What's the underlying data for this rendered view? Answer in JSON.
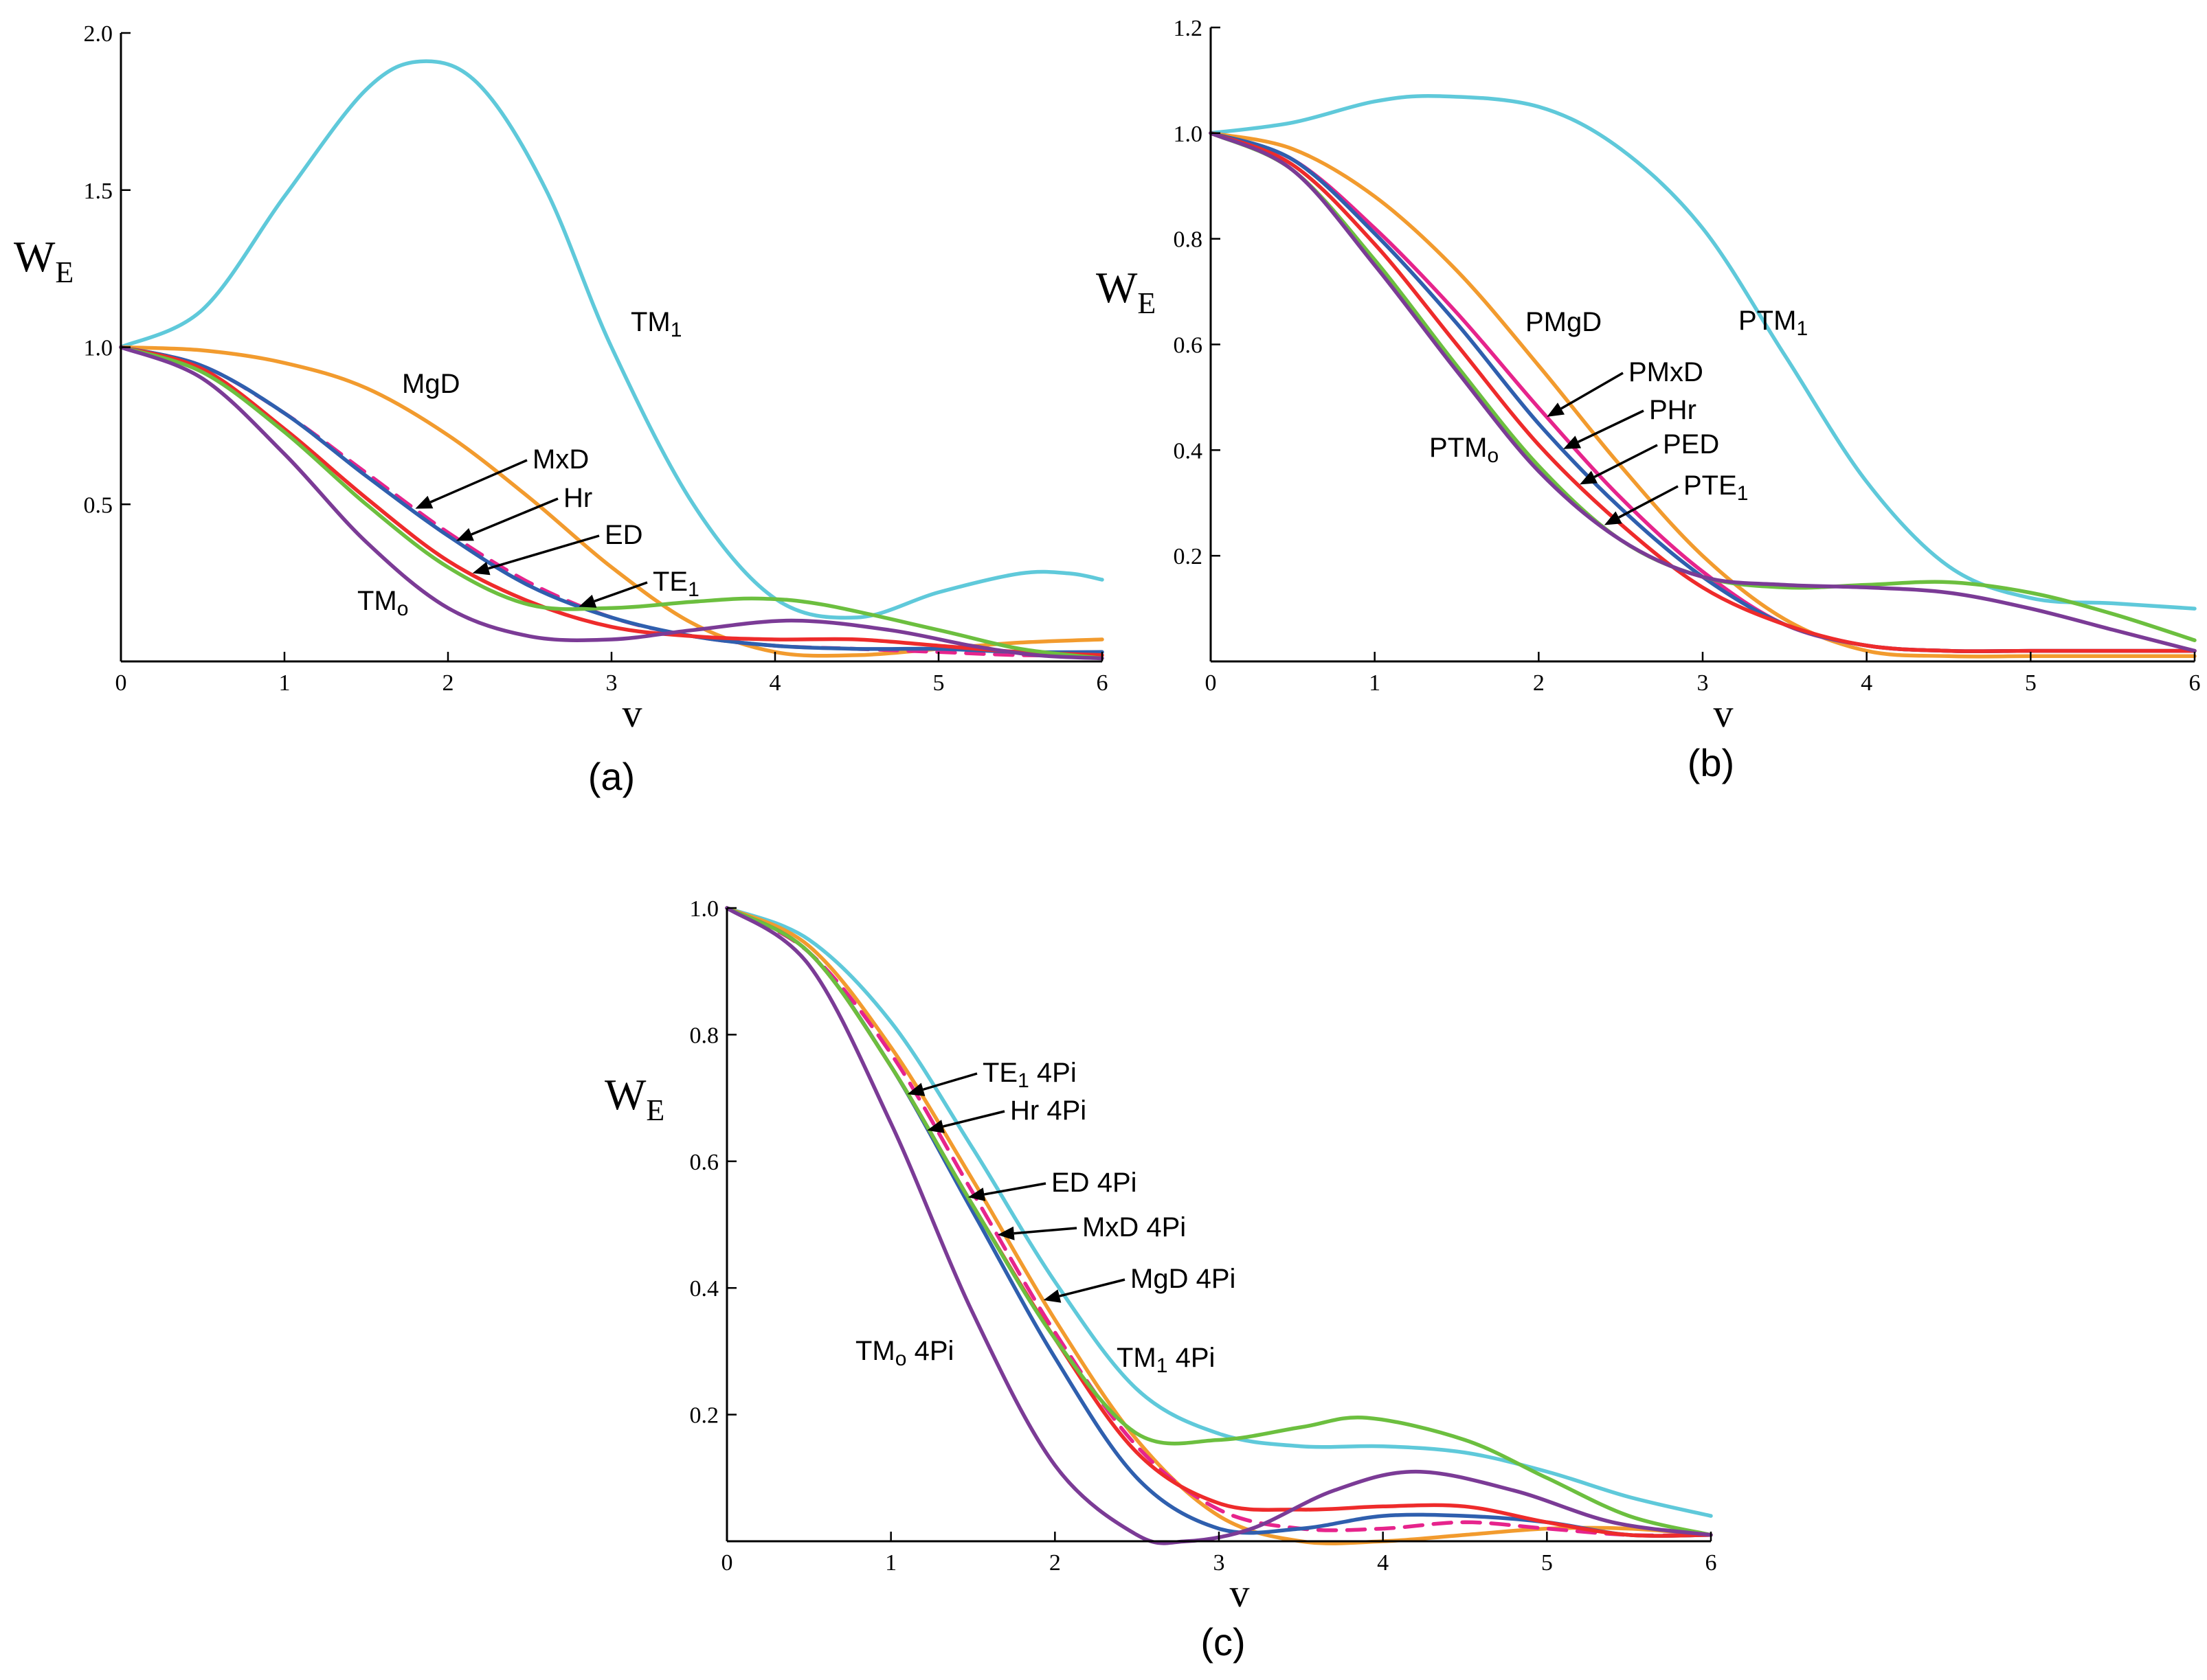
{
  "chart_data": [
    {
      "id": "a",
      "type": "line",
      "panel_label": "(a)",
      "xlabel": "v",
      "ylabel": "W",
      "ylabel_sub": "E",
      "xlim": [
        0,
        6
      ],
      "ylim": [
        0,
        2.0
      ],
      "xticks": [
        "0",
        "1",
        "2",
        "3",
        "4",
        "5",
        "6"
      ],
      "yticks": [
        "0.5",
        "1.0",
        "1.5",
        "2.0"
      ],
      "ytick_values": [
        0.5,
        1.0,
        1.5,
        2.0
      ],
      "series": [
        {
          "name": "TM1",
          "label_main": "TM",
          "label_sub": "1",
          "label_rest": "",
          "color": "#5fc9da",
          "dashed": false,
          "x": [
            0,
            0.5,
            1,
            1.5,
            1.85,
            2.2,
            2.6,
            3,
            3.5,
            4.0,
            4.5,
            5,
            5.5,
            5.8,
            6
          ],
          "y": [
            1.0,
            1.12,
            1.48,
            1.82,
            1.91,
            1.83,
            1.5,
            1.0,
            0.5,
            0.2,
            0.14,
            0.22,
            0.28,
            0.28,
            0.26
          ]
        },
        {
          "name": "MgD",
          "label_main": "MgD",
          "label_sub": "",
          "label_rest": "",
          "color": "#f29b2e",
          "dashed": false,
          "x": [
            0,
            0.5,
            1,
            1.5,
            2,
            2.5,
            3,
            3.5,
            4,
            4.5,
            5,
            5.5,
            6
          ],
          "y": [
            1.0,
            0.99,
            0.95,
            0.87,
            0.72,
            0.52,
            0.3,
            0.12,
            0.03,
            0.02,
            0.04,
            0.06,
            0.07
          ]
        },
        {
          "name": "MxD",
          "label_main": "MxD",
          "label_sub": "",
          "label_rest": "",
          "color": "#e6248c",
          "dashed": true,
          "x": [
            0,
            0.5,
            1,
            1.5,
            2,
            2.5,
            3,
            3.5,
            4,
            4.5,
            5,
            5.5,
            6
          ],
          "y": [
            1.0,
            0.94,
            0.79,
            0.6,
            0.41,
            0.25,
            0.14,
            0.08,
            0.05,
            0.04,
            0.03,
            0.02,
            0.02
          ]
        },
        {
          "name": "Hr",
          "label_main": "Hr",
          "label_sub": "",
          "label_rest": "",
          "color": "#2f5fae",
          "dashed": false,
          "x": [
            0,
            0.5,
            1,
            1.5,
            2,
            2.5,
            3,
            3.5,
            4,
            4.5,
            5,
            5.5,
            6
          ],
          "y": [
            1.0,
            0.94,
            0.79,
            0.59,
            0.4,
            0.24,
            0.14,
            0.08,
            0.05,
            0.04,
            0.04,
            0.03,
            0.03
          ]
        },
        {
          "name": "ED",
          "label_main": "ED",
          "label_sub": "",
          "label_rest": "",
          "color": "#ee2b2b",
          "dashed": false,
          "x": [
            0,
            0.5,
            1,
            1.5,
            2,
            2.5,
            3,
            3.5,
            4,
            4.5,
            5,
            5.5,
            6
          ],
          "y": [
            1.0,
            0.93,
            0.74,
            0.52,
            0.32,
            0.19,
            0.11,
            0.08,
            0.07,
            0.07,
            0.05,
            0.03,
            0.02
          ]
        },
        {
          "name": "TE1",
          "label_main": "TE",
          "label_sub": "1",
          "label_rest": "",
          "color": "#6cbf3f",
          "dashed": false,
          "x": [
            0,
            0.5,
            1,
            1.5,
            2,
            2.5,
            3,
            3.5,
            3.9,
            4.3,
            5,
            5.5,
            6
          ],
          "y": [
            1.0,
            0.92,
            0.73,
            0.5,
            0.3,
            0.18,
            0.17,
            0.19,
            0.2,
            0.18,
            0.1,
            0.04,
            0.01
          ]
        },
        {
          "name": "TM0",
          "label_main": "TM",
          "label_sub": "o",
          "label_rest": "",
          "color": "#7b3b96",
          "dashed": false,
          "x": [
            0,
            0.5,
            1,
            1.5,
            2,
            2.5,
            3,
            3.5,
            4.1,
            4.7,
            5.2,
            5.6,
            6
          ],
          "y": [
            1.0,
            0.9,
            0.66,
            0.38,
            0.17,
            0.08,
            0.07,
            0.1,
            0.13,
            0.1,
            0.05,
            0.02,
            0.01
          ]
        }
      ],
      "annotations": [
        {
          "series": "TM1",
          "arrow": false
        },
        {
          "series": "MgD",
          "arrow": false
        },
        {
          "series": "MxD",
          "arrow": true,
          "ax": 1.8
        },
        {
          "series": "Hr",
          "arrow": true,
          "ax": 2.05
        },
        {
          "series": "ED",
          "arrow": true,
          "ax": 2.15
        },
        {
          "series": "TE1",
          "arrow": true,
          "ax": 2.8
        },
        {
          "series": "TM0",
          "arrow": false
        }
      ]
    },
    {
      "id": "b",
      "type": "line",
      "panel_label": "(b)",
      "xlabel": "v",
      "ylabel": "W",
      "ylabel_sub": "E",
      "xlim": [
        0,
        6
      ],
      "ylim": [
        0,
        1.2
      ],
      "xticks": [
        "0",
        "1",
        "2",
        "3",
        "4",
        "5",
        "6"
      ],
      "yticks": [
        "0.2",
        "0.4",
        "0.6",
        "0.8",
        "1.0",
        "1.2"
      ],
      "ytick_values": [
        0.2,
        0.4,
        0.6,
        0.8,
        1.0,
        1.2
      ],
      "series": [
        {
          "name": "PTM1",
          "label_main": "PTM",
          "label_sub": "1",
          "label_rest": "",
          "color": "#5fc9da",
          "dashed": false,
          "x": [
            0,
            0.5,
            1,
            1.4,
            2,
            2.5,
            3,
            3.5,
            4,
            4.5,
            5,
            5.5,
            6
          ],
          "y": [
            1.0,
            1.02,
            1.06,
            1.07,
            1.05,
            0.97,
            0.82,
            0.58,
            0.34,
            0.18,
            0.12,
            0.11,
            0.1
          ]
        },
        {
          "name": "PMgD",
          "label_main": "PMgD",
          "label_sub": "",
          "label_rest": "",
          "color": "#f29b2e",
          "dashed": false,
          "x": [
            0,
            0.5,
            1,
            1.5,
            2,
            2.5,
            3,
            3.5,
            4,
            4.5,
            5,
            5.5,
            6
          ],
          "y": [
            1.0,
            0.97,
            0.88,
            0.74,
            0.56,
            0.37,
            0.2,
            0.08,
            0.02,
            0.01,
            0.01,
            0.01,
            0.01
          ]
        },
        {
          "name": "PMxD",
          "label_main": "PMxD",
          "label_sub": "",
          "label_rest": "",
          "color": "#e6248c",
          "dashed": false,
          "x": [
            0,
            0.5,
            1,
            1.5,
            2,
            2.5,
            3,
            3.5,
            4,
            4.5,
            5,
            5.5,
            6
          ],
          "y": [
            1.0,
            0.95,
            0.82,
            0.66,
            0.48,
            0.31,
            0.17,
            0.07,
            0.03,
            0.02,
            0.02,
            0.02,
            0.02
          ]
        },
        {
          "name": "PHr",
          "label_main": "PHr",
          "label_sub": "",
          "label_rest": "",
          "color": "#2f5fae",
          "dashed": false,
          "x": [
            0,
            0.5,
            1,
            1.5,
            2,
            2.5,
            3,
            3.5,
            4,
            4.5,
            5,
            5.5,
            6
          ],
          "y": [
            1.0,
            0.95,
            0.81,
            0.64,
            0.45,
            0.29,
            0.16,
            0.07,
            0.03,
            0.02,
            0.02,
            0.02,
            0.02
          ]
        },
        {
          "name": "PED",
          "label_main": "PED",
          "label_sub": "",
          "label_rest": "",
          "color": "#ee2b2b",
          "dashed": false,
          "x": [
            0,
            0.5,
            1,
            1.5,
            2,
            2.5,
            3,
            3.5,
            4,
            4.5,
            5,
            5.5,
            6
          ],
          "y": [
            1.0,
            0.94,
            0.79,
            0.6,
            0.41,
            0.26,
            0.14,
            0.07,
            0.03,
            0.02,
            0.02,
            0.02,
            0.02
          ]
        },
        {
          "name": "PTE1",
          "label_main": "PTE",
          "label_sub": "1",
          "label_rest": "",
          "color": "#6cbf3f",
          "dashed": false,
          "x": [
            0,
            0.5,
            1,
            1.5,
            2,
            2.5,
            3,
            3.5,
            4,
            4.5,
            5,
            5.5,
            6
          ],
          "y": [
            1.0,
            0.93,
            0.76,
            0.56,
            0.37,
            0.23,
            0.16,
            0.14,
            0.145,
            0.15,
            0.13,
            0.09,
            0.04
          ]
        },
        {
          "name": "PTM0",
          "label_main": "PTM",
          "label_sub": "o",
          "label_rest": "",
          "color": "#7b3b96",
          "dashed": false,
          "x": [
            0,
            0.5,
            1,
            1.5,
            2,
            2.5,
            3,
            3.5,
            4,
            4.5,
            5,
            5.5,
            6
          ],
          "y": [
            1.0,
            0.93,
            0.75,
            0.55,
            0.36,
            0.23,
            0.16,
            0.145,
            0.14,
            0.13,
            0.1,
            0.06,
            0.02
          ]
        }
      ],
      "annotations": [
        {
          "series": "PTM1",
          "arrow": false
        },
        {
          "series": "PMgD",
          "arrow": false
        },
        {
          "series": "PMxD",
          "arrow": true,
          "ax": 2.05
        },
        {
          "series": "PHr",
          "arrow": true,
          "ax": 2.15
        },
        {
          "series": "PED",
          "arrow": true,
          "ax": 2.25
        },
        {
          "series": "PTE1",
          "arrow": true,
          "ax": 2.4
        },
        {
          "series": "PTM0",
          "arrow": false
        }
      ]
    },
    {
      "id": "c",
      "type": "line",
      "panel_label": "(c)",
      "xlabel": "v",
      "ylabel": "W",
      "ylabel_sub": "E",
      "xlim": [
        0,
        6
      ],
      "ylim": [
        0,
        1.0
      ],
      "xticks": [
        "0",
        "1",
        "2",
        "3",
        "4",
        "5",
        "6"
      ],
      "yticks": [
        "0.2",
        "0.4",
        "0.6",
        "0.8",
        "1.0"
      ],
      "ytick_values": [
        0.2,
        0.4,
        0.6,
        0.8,
        1.0
      ],
      "series": [
        {
          "name": "TM1 4Pi",
          "label_main": "TM",
          "label_sub": "1",
          "label_rest": " 4Pi",
          "color": "#5fc9da",
          "dashed": false,
          "x": [
            0,
            0.5,
            1,
            1.5,
            2,
            2.5,
            3,
            3.5,
            4,
            4.5,
            5,
            5.5,
            6
          ],
          "y": [
            1.0,
            0.95,
            0.82,
            0.62,
            0.41,
            0.24,
            0.17,
            0.15,
            0.15,
            0.14,
            0.11,
            0.07,
            0.04
          ]
        },
        {
          "name": "MgD 4Pi",
          "label_main": "MgD",
          "label_sub": "",
          "label_rest": " 4Pi",
          "color": "#f29b2e",
          "dashed": false,
          "x": [
            0,
            0.5,
            1,
            1.5,
            2,
            2.5,
            3,
            3.5,
            4,
            4.5,
            5,
            5.5,
            6
          ],
          "y": [
            1.0,
            0.94,
            0.78,
            0.57,
            0.35,
            0.16,
            0.04,
            0.0,
            0.0,
            0.01,
            0.02,
            0.02,
            0.01
          ]
        },
        {
          "name": "MxD 4Pi",
          "label_main": "MxD",
          "label_sub": "",
          "label_rest": " 4Pi",
          "color": "#e6248c",
          "dashed": true,
          "x": [
            0,
            0.5,
            1,
            1.5,
            2,
            2.5,
            3,
            3.5,
            4,
            4.5,
            5,
            5.5,
            6
          ],
          "y": [
            1.0,
            0.93,
            0.77,
            0.55,
            0.33,
            0.15,
            0.05,
            0.02,
            0.02,
            0.03,
            0.02,
            0.01,
            0.01
          ]
        },
        {
          "name": "Hr 4Pi",
          "label_main": "Hr",
          "label_sub": "",
          "label_rest": " 4Pi",
          "color": "#2f5fae",
          "dashed": false,
          "x": [
            0,
            0.5,
            1,
            1.5,
            2,
            2.5,
            3,
            3.5,
            4,
            4.5,
            5,
            5.5,
            6
          ],
          "y": [
            1.0,
            0.93,
            0.75,
            0.52,
            0.29,
            0.1,
            0.02,
            0.02,
            0.04,
            0.04,
            0.03,
            0.01,
            0.01
          ]
        },
        {
          "name": "ED 4Pi",
          "label_main": "ED",
          "label_sub": "",
          "label_rest": " 4Pi",
          "color": "#ee2b2b",
          "dashed": false,
          "x": [
            0,
            0.5,
            1,
            1.5,
            2,
            2.5,
            3,
            3.5,
            4,
            4.5,
            5,
            5.5,
            6
          ],
          "y": [
            1.0,
            0.93,
            0.75,
            0.53,
            0.32,
            0.14,
            0.06,
            0.05,
            0.055,
            0.055,
            0.03,
            0.01,
            0.01
          ]
        },
        {
          "name": "TE1 4Pi",
          "label_main": "TE",
          "label_sub": "1",
          "label_rest": " 4Pi",
          "color": "#6cbf3f",
          "dashed": false,
          "x": [
            0,
            0.5,
            1,
            1.5,
            2,
            2.5,
            3,
            3.5,
            3.9,
            4.5,
            5,
            5.5,
            6
          ],
          "y": [
            1.0,
            0.93,
            0.75,
            0.53,
            0.32,
            0.17,
            0.16,
            0.18,
            0.195,
            0.16,
            0.1,
            0.04,
            0.01
          ]
        },
        {
          "name": "TM0 4Pi",
          "label_main": "TM",
          "label_sub": "o",
          "label_rest": " 4Pi",
          "color": "#7b3b96",
          "dashed": false,
          "x": [
            0,
            0.5,
            1,
            1.5,
            2,
            2.5,
            2.8,
            3.2,
            3.7,
            4.2,
            4.8,
            5.4,
            6
          ],
          "y": [
            1.0,
            0.91,
            0.66,
            0.36,
            0.12,
            0.01,
            0.0,
            0.02,
            0.08,
            0.11,
            0.08,
            0.03,
            0.01
          ]
        }
      ],
      "annotations": [
        {
          "series": "TE1 4Pi",
          "arrow": true,
          "ax": 1.1
        },
        {
          "series": "Hr 4Pi",
          "arrow": true,
          "ax": 1.22
        },
        {
          "series": "ED 4Pi",
          "arrow": true,
          "ax": 1.47
        },
        {
          "series": "MxD 4Pi",
          "arrow": true,
          "ax": 1.65
        },
        {
          "series": "MgD 4Pi",
          "arrow": true,
          "ax": 1.93
        },
        {
          "series": "TM0 4Pi",
          "arrow": false
        },
        {
          "series": "TM1 4Pi",
          "arrow": false
        }
      ]
    }
  ]
}
